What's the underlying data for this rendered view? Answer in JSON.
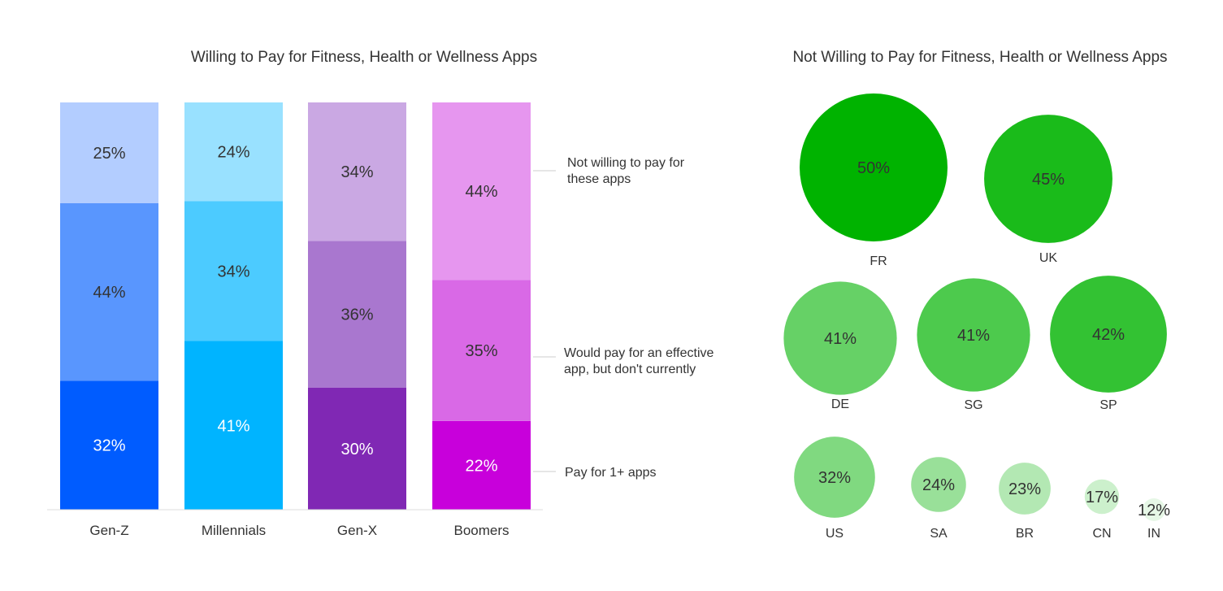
{
  "chart_data": [
    {
      "type": "bar",
      "stacked": true,
      "normalized": true,
      "title": "Willing to Pay for Fitness, Health or Wellness Apps",
      "categories": [
        "Gen-Z",
        "Millennials",
        "Gen-X",
        "Boomers"
      ],
      "series": [
        {
          "name": "Pay for 1+ apps",
          "values": [
            32,
            41,
            30,
            22
          ],
          "value_labels": [
            "32%",
            "41%",
            "30%",
            "22%"
          ]
        },
        {
          "name": "Would pay for an effective app, but don't currently",
          "values": [
            44,
            34,
            36,
            35
          ],
          "value_labels": [
            "44%",
            "34%",
            "36%",
            "35%"
          ]
        },
        {
          "name": "Not willing to pay for these apps",
          "values": [
            25,
            24,
            34,
            44
          ],
          "value_labels": [
            "25%",
            "24%",
            "34%",
            "44%"
          ]
        }
      ],
      "colors": [
        [
          "#005cff",
          "#5996fe",
          "#b3cdff"
        ],
        [
          "#00b4ff",
          "#4ccbff",
          "#99e1ff"
        ],
        [
          "#8028b4",
          "#a977cf",
          "#caa8e3"
        ],
        [
          "#c800db",
          "#d969e6",
          "#e696ef"
        ]
      ],
      "legend": "right"
    },
    {
      "type": "bubble",
      "title": "Not Willing to Pay for Fitness, Health or Wellness Apps",
      "points": [
        {
          "label": "FR",
          "value": 50,
          "value_label": "50%",
          "color": "#00b300"
        },
        {
          "label": "UK",
          "value": 45,
          "value_label": "45%",
          "color": "#1abb1a"
        },
        {
          "label": "DE",
          "value": 41,
          "value_label": "41%",
          "color": "#66d166"
        },
        {
          "label": "SG",
          "value": 41,
          "value_label": "41%",
          "color": "#4dca4d"
        },
        {
          "label": "SP",
          "value": 42,
          "value_label": "42%",
          "color": "#33c233"
        },
        {
          "label": "US",
          "value": 32,
          "value_label": "32%",
          "color": "#80d980"
        },
        {
          "label": "SA",
          "value": 24,
          "value_label": "24%",
          "color": "#99e099"
        },
        {
          "label": "BR",
          "value": 23,
          "value_label": "23%",
          "color": "#b3e8b3"
        },
        {
          "label": "CN",
          "value": 17,
          "value_label": "17%",
          "color": "#ccf0cc"
        },
        {
          "label": "IN",
          "value": 12,
          "value_label": "12%",
          "color": "#e6f7e6"
        }
      ]
    }
  ]
}
